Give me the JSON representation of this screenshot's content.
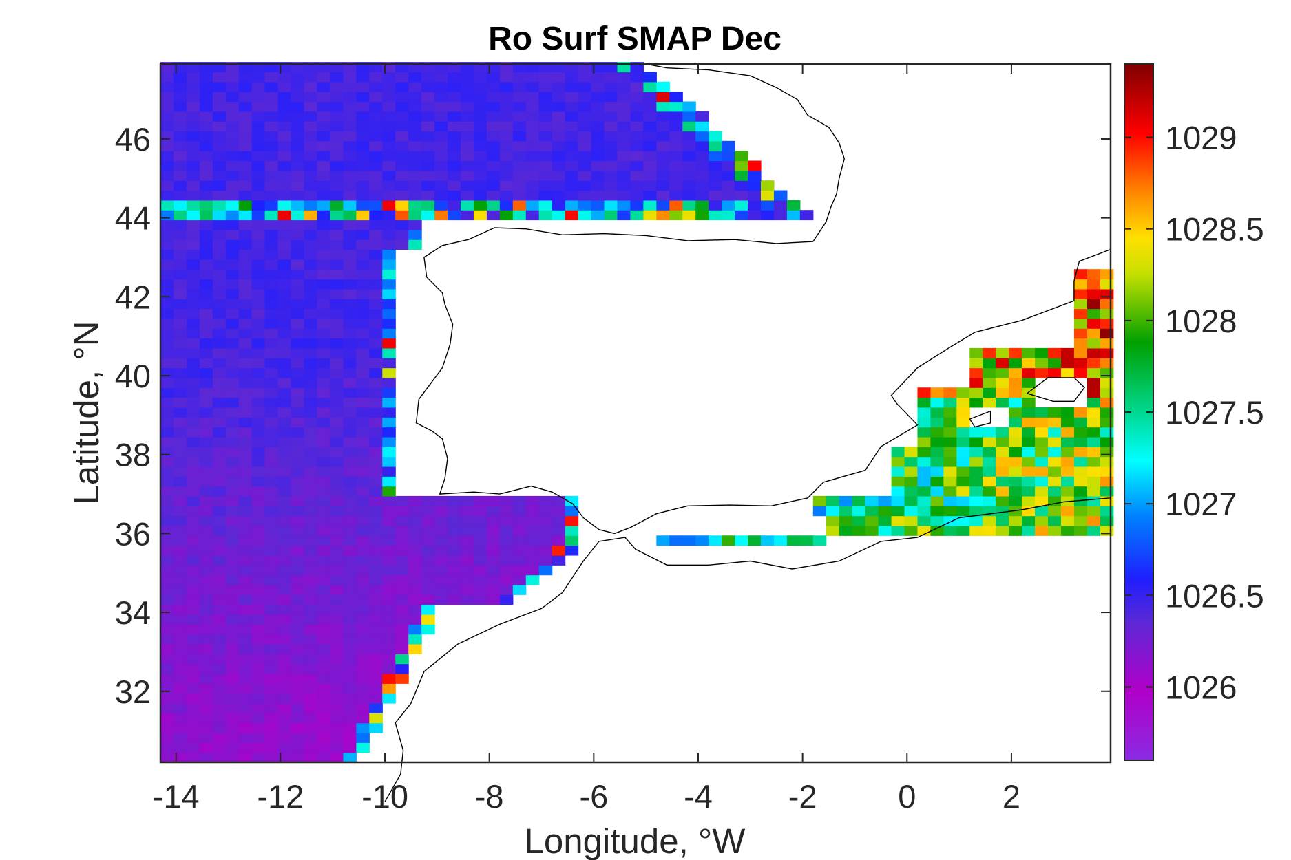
{
  "chart_data": {
    "type": "heatmap",
    "title": "Ro Surf SMAP Dec",
    "xlabel": "Longitude, °W",
    "ylabel": "Latitude, °N",
    "xlim": [
      -14.3,
      3.9
    ],
    "ylim": [
      30.2,
      47.9
    ],
    "xticks": [
      -14,
      -12,
      -10,
      -8,
      -6,
      -4,
      -2,
      0,
      2
    ],
    "yticks": [
      32,
      34,
      36,
      38,
      40,
      42,
      44,
      46
    ],
    "xtick_labels": [
      "-14",
      "-12",
      "-10",
      "-8",
      "-6",
      "-4",
      "-2",
      "0",
      "2"
    ],
    "ytick_labels": [
      "32",
      "34",
      "36",
      "38",
      "40",
      "42",
      "44",
      "46"
    ],
    "cell_size_deg": 0.25,
    "colorbar": {
      "limits": [
        1025.6,
        1029.4
      ],
      "ticks": [
        1026,
        1026.5,
        1027,
        1027.5,
        1028,
        1028.5,
        1029
      ],
      "tick_labels": [
        "1026",
        "1026.5",
        "1027",
        "1027.5",
        "1028",
        "1028.5",
        "1029"
      ],
      "colormap": "jet-like (violet to dark red)"
    },
    "regions": {
      "atlantic_open_ocean": {
        "approx_value": 1026.4,
        "note": "blue-violet, grading to magenta (~1026.1) toward south"
      },
      "bay_of_biscay_coastal": {
        "approx_value": 1027.3
      },
      "alboran_sea": {
        "approx_value": 1027.6
      },
      "balearic_region": {
        "approx_value": 1028.2
      }
    },
    "grid": false,
    "colors": {
      "coastline": "#000000",
      "axes": "#262626",
      "land": "#ffffff"
    }
  }
}
